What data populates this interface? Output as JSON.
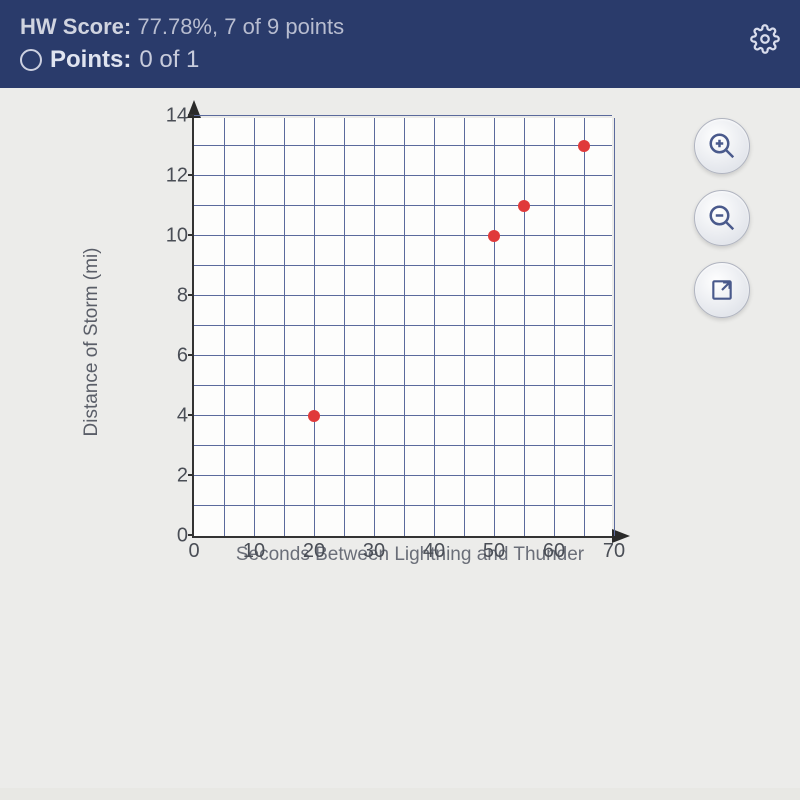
{
  "header": {
    "hw_label": "HW Score:",
    "hw_value": "77.78%, 7 of 9 points",
    "pts_label": "Points:",
    "pts_value": "0 of 1"
  },
  "chart": {
    "type": "scatter",
    "xlabel": "Seconds Between Lightning and Thunder",
    "ylabel": "Distance of Storm (mi)",
    "xlim": [
      0,
      70
    ],
    "ylim": [
      0,
      14
    ],
    "x_major_step": 10,
    "y_major_step": 2,
    "x_minor_step": 5,
    "y_minor_step": 1,
    "grid_color": "#5b6a9c",
    "background_color": "#fdfdfc",
    "axis_color": "#333333",
    "tick_font_size": 20,
    "label_font_size": 19,
    "label_color": "#5a5e68",
    "point_color": "#e03a3a",
    "point_size": 12,
    "points": [
      {
        "x": 20,
        "y": 4
      },
      {
        "x": 50,
        "y": 10
      },
      {
        "x": 55,
        "y": 11
      },
      {
        "x": 65,
        "y": 13
      }
    ]
  },
  "controls": {
    "zoom_in": "zoom-in",
    "zoom_out": "zoom-out",
    "expand": "expand"
  }
}
